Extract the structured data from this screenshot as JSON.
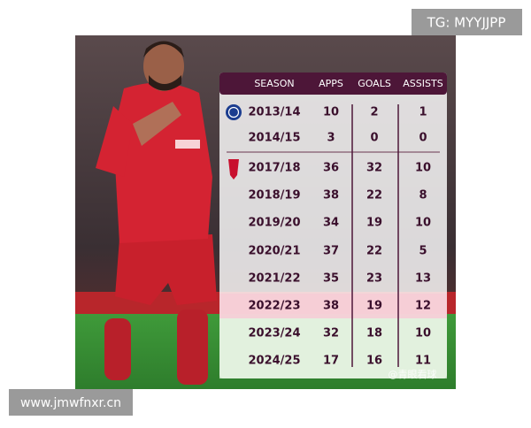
{
  "watermarks": {
    "top": "TG: MYYJJPP",
    "bottom": "www.jmwfnxr.cn",
    "credit": "@青眼看球"
  },
  "table": {
    "header": [
      "SEASON",
      "APPS",
      "GOALS",
      "ASSISTS"
    ],
    "rows": [
      [
        "2013/14",
        10,
        2,
        1
      ],
      [
        "2014/15",
        3,
        0,
        0
      ],
      [
        "2017/18",
        36,
        32,
        10
      ],
      [
        "2018/19",
        38,
        22,
        8
      ],
      [
        "2019/20",
        34,
        19,
        10
      ],
      [
        "2020/21",
        37,
        22,
        5
      ],
      [
        "2021/22",
        35,
        23,
        13
      ],
      [
        "2022/23",
        38,
        19,
        12
      ],
      [
        "2023/24",
        32,
        18,
        10
      ],
      [
        "2024/25",
        17,
        16,
        11
      ]
    ]
  }
}
